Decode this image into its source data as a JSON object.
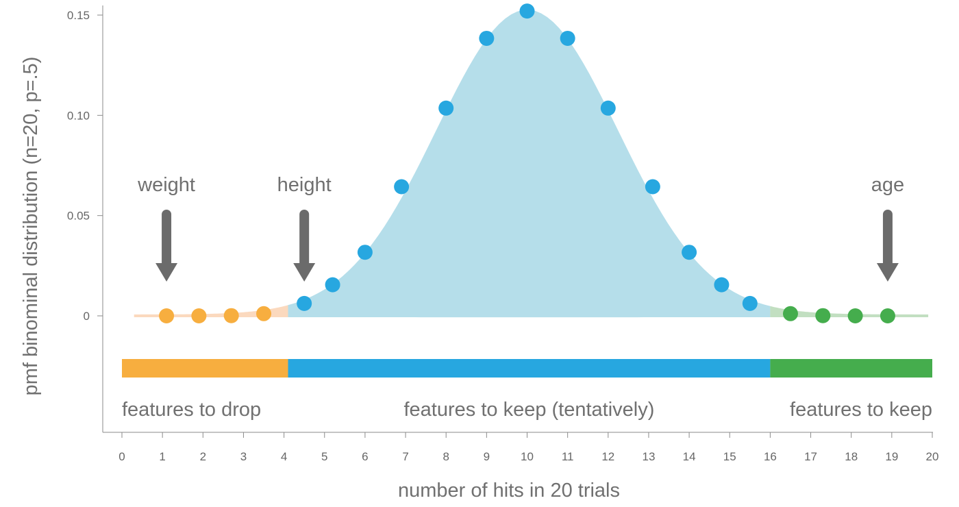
{
  "chart_data": {
    "type": "scatter",
    "title": "",
    "xlabel": "number of hits in 20 trials",
    "ylabel": "pmf binominal distribution (n=20, p=.5)",
    "xlim": [
      0,
      20
    ],
    "ylim": [
      0,
      0.15
    ],
    "x_ticks": [
      "0",
      "1",
      "2",
      "3",
      "4",
      "5",
      "6",
      "7",
      "8",
      "9",
      "10",
      "11",
      "12",
      "13",
      "14",
      "15",
      "16",
      "17",
      "18",
      "19",
      "20"
    ],
    "y_ticks": [
      {
        "value": 0,
        "label": "0"
      },
      {
        "value": 0.05,
        "label": "0.05"
      },
      {
        "value": 0.1,
        "label": "0.10"
      },
      {
        "value": 0.15,
        "label": "0.15"
      }
    ],
    "points": [
      {
        "x": 1.1,
        "y": 0.0,
        "group": "drop"
      },
      {
        "x": 1.9,
        "y": 0.0,
        "group": "drop"
      },
      {
        "x": 2.7,
        "y": 0.0001,
        "group": "drop"
      },
      {
        "x": 3.5,
        "y": 0.0011,
        "group": "drop"
      },
      {
        "x": 4.5,
        "y": 0.0062,
        "group": "tentative"
      },
      {
        "x": 5.2,
        "y": 0.0155,
        "group": "tentative"
      },
      {
        "x": 6.0,
        "y": 0.0317,
        "group": "tentative"
      },
      {
        "x": 6.9,
        "y": 0.0644,
        "group": "tentative"
      },
      {
        "x": 8.0,
        "y": 0.1036,
        "group": "tentative"
      },
      {
        "x": 9.0,
        "y": 0.1384,
        "group": "tentative"
      },
      {
        "x": 10.0,
        "y": 0.152,
        "group": "tentative"
      },
      {
        "x": 11.0,
        "y": 0.1384,
        "group": "tentative"
      },
      {
        "x": 12.0,
        "y": 0.1036,
        "group": "tentative"
      },
      {
        "x": 13.1,
        "y": 0.0644,
        "group": "tentative"
      },
      {
        "x": 14.0,
        "y": 0.0317,
        "group": "tentative"
      },
      {
        "x": 14.8,
        "y": 0.0155,
        "group": "tentative"
      },
      {
        "x": 15.5,
        "y": 0.0062,
        "group": "tentative"
      },
      {
        "x": 16.5,
        "y": 0.0011,
        "group": "keep"
      },
      {
        "x": 17.3,
        "y": 0.0001,
        "group": "keep"
      },
      {
        "x": 18.1,
        "y": 0.0,
        "group": "keep"
      },
      {
        "x": 18.9,
        "y": 0.0,
        "group": "keep"
      }
    ],
    "regions": [
      {
        "label": "features to drop",
        "from": 0,
        "to": 4.1,
        "color": "#F7AE3F",
        "fill_color": "#FBD9BE",
        "key": "drop"
      },
      {
        "label": "features to keep (tentatively)",
        "from": 4.1,
        "to": 16,
        "color": "#27A7E0",
        "fill_color": "#B5DEEA",
        "key": "tentative"
      },
      {
        "label": "features to keep",
        "from": 16,
        "to": 20,
        "color": "#45AD4D",
        "fill_color": "#C2DFC1",
        "key": "keep"
      }
    ],
    "annotations": [
      {
        "label": "weight",
        "x": 1.1
      },
      {
        "label": "height",
        "x": 4.5
      },
      {
        "label": "age",
        "x": 18.9
      }
    ],
    "colors": {
      "axis": "#8A8A8A",
      "arrow": "#6B6B6B",
      "text": "#707070"
    }
  }
}
